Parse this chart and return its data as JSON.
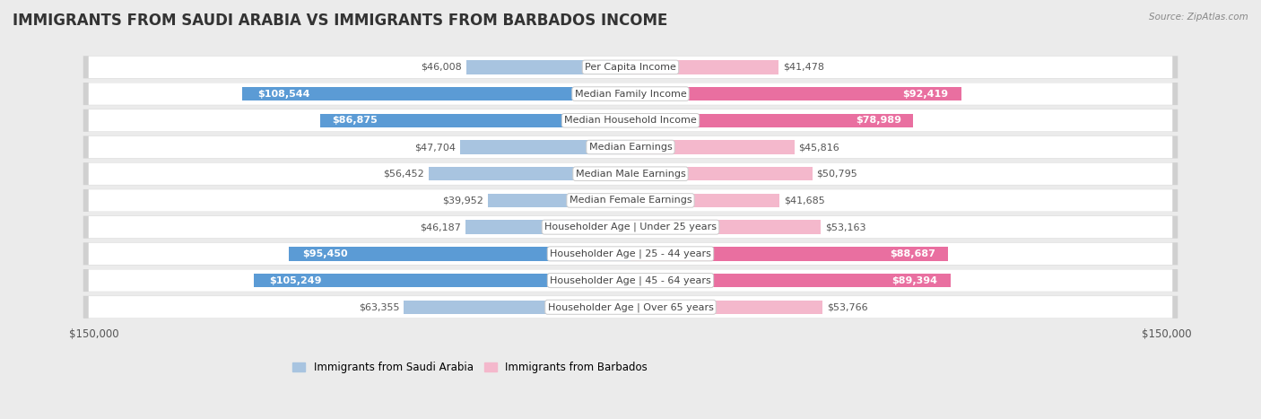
{
  "title": "IMMIGRANTS FROM SAUDI ARABIA VS IMMIGRANTS FROM BARBADOS INCOME",
  "source": "Source: ZipAtlas.com",
  "categories": [
    "Per Capita Income",
    "Median Family Income",
    "Median Household Income",
    "Median Earnings",
    "Median Male Earnings",
    "Median Female Earnings",
    "Householder Age | Under 25 years",
    "Householder Age | 25 - 44 years",
    "Householder Age | 45 - 64 years",
    "Householder Age | Over 65 years"
  ],
  "saudi_values": [
    46008,
    108544,
    86875,
    47704,
    56452,
    39952,
    46187,
    95450,
    105249,
    63355
  ],
  "barbados_values": [
    41478,
    92419,
    78989,
    45816,
    50795,
    41685,
    53163,
    88687,
    89394,
    53766
  ],
  "saudi_labels": [
    "$46,008",
    "$108,544",
    "$86,875",
    "$47,704",
    "$56,452",
    "$39,952",
    "$46,187",
    "$95,450",
    "$105,249",
    "$63,355"
  ],
  "barbados_labels": [
    "$41,478",
    "$92,419",
    "$78,989",
    "$45,816",
    "$50,795",
    "$41,685",
    "$53,163",
    "$88,687",
    "$89,394",
    "$53,766"
  ],
  "saudi_color_normal": "#a8c4e0",
  "saudi_color_highlight": "#5b9bd5",
  "barbados_color_normal": "#f4b8cc",
  "barbados_color_highlight": "#e96fa0",
  "saudi_highlight": [
    1,
    2,
    7,
    8
  ],
  "barbados_highlight": [
    1,
    2,
    7,
    8
  ],
  "max_value": 150000,
  "legend_saudi": "Immigrants from Saudi Arabia",
  "legend_barbados": "Immigrants from Barbados",
  "bg_color": "#ebebeb",
  "title_fontsize": 12,
  "label_fontsize": 8,
  "category_fontsize": 8
}
